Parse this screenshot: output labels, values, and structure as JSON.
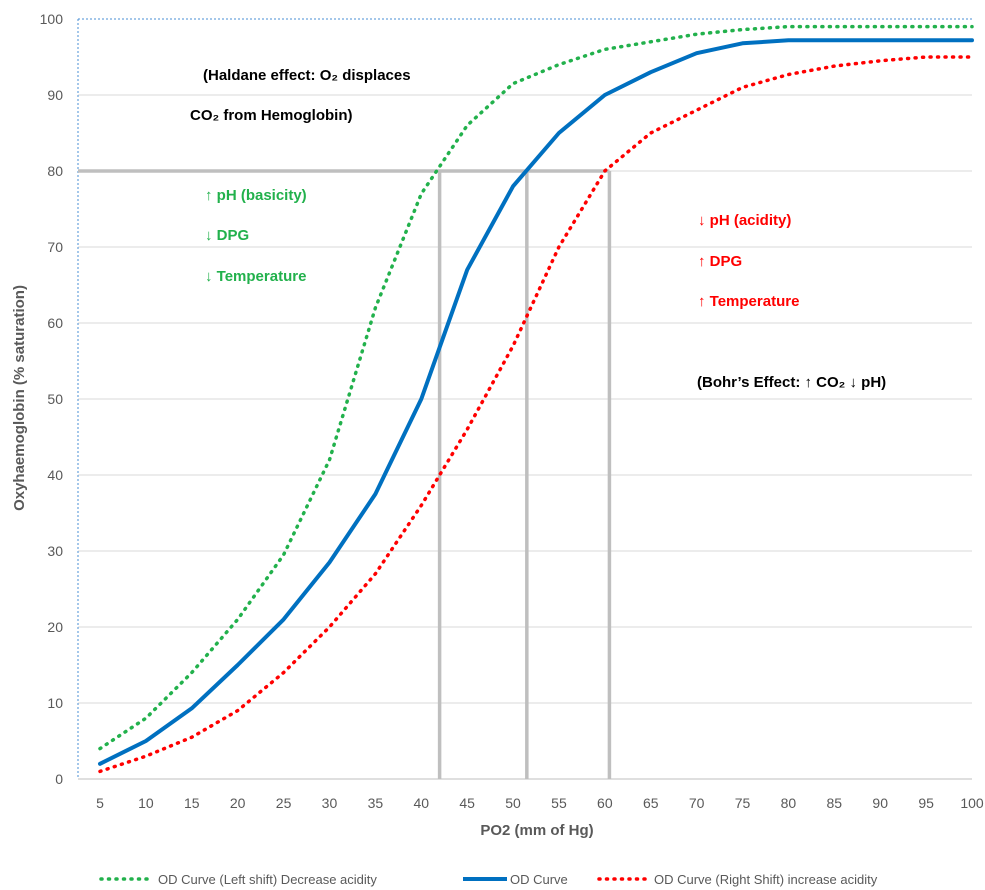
{
  "chart_data": {
    "type": "line",
    "xlabel": "PO2 (mm of Hg)",
    "ylabel": "Oxyhaemoglobin (% saturation)",
    "x": [
      5,
      10,
      15,
      20,
      25,
      30,
      35,
      40,
      45,
      50,
      55,
      60,
      65,
      70,
      75,
      80,
      85,
      90,
      95,
      100
    ],
    "xlim": [
      5,
      100
    ],
    "ylim": [
      0,
      100
    ],
    "y_ticks": [
      0,
      10,
      20,
      30,
      40,
      50,
      60,
      70,
      80,
      90,
      100
    ],
    "grid": "horizontal",
    "legend_position": "bottom",
    "series": [
      {
        "name": "OD Curve (Left shift) Decrease acidity",
        "style": "dotted",
        "color": "#22b14c",
        "values": [
          4,
          8,
          14,
          21,
          29.5,
          42,
          62,
          77,
          86,
          91.5,
          94,
          96,
          97,
          98,
          98.6,
          99,
          99,
          99,
          99,
          99
        ]
      },
      {
        "name": "OD Curve",
        "style": "solid",
        "color": "#0070c0",
        "values": [
          2,
          5,
          9.3,
          15,
          21,
          28.5,
          37.5,
          50,
          67,
          78,
          85,
          90,
          93,
          95.5,
          96.8,
          97.2,
          97.2,
          97.2,
          97.2,
          97.2
        ]
      },
      {
        "name": "OD Curve (Right Shift) increase acidity",
        "style": "dotted",
        "color": "#ff0000",
        "values": [
          1,
          3,
          5.5,
          9,
          14,
          20,
          27,
          36,
          46,
          57,
          70,
          80,
          85,
          88,
          91,
          92.7,
          93.8,
          94.5,
          95,
          95
        ]
      }
    ],
    "reference_lines": {
      "y": 80,
      "x_values": [
        42,
        51.5,
        60.5
      ],
      "color": "#bfbfbf"
    },
    "annotations": {
      "haldane_line1": "(Haldane effect: O₂ displaces",
      "haldane_line2": "CO₂ from Hemoglobin)",
      "left_ph": "↑ pH (basicity)",
      "left_dpg": "↓ DPG",
      "left_temp": "↓ Temperature",
      "right_ph": "↓ pH (acidity)",
      "right_dpg": "↑ DPG",
      "right_temp": "↑ Temperature",
      "bohr": "(Bohr’s Effect: ↑ CO₂  ↓ pH)"
    },
    "colors": {
      "left_text": "#22b14c",
      "right_text": "#ff0000",
      "black_text": "#000000"
    }
  }
}
